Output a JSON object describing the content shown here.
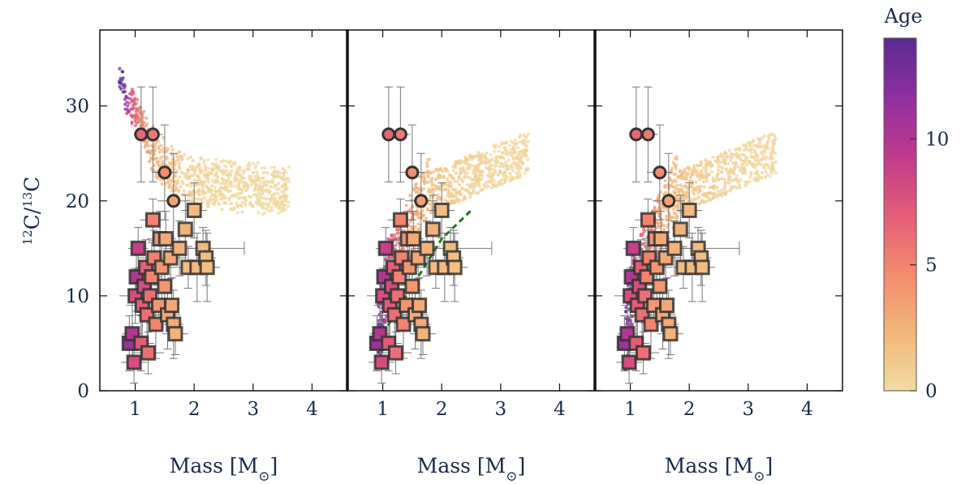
{
  "chart_data": {
    "type": "scatter",
    "panels": 3,
    "x_axis": {
      "label": "Mass [M",
      "label_suffix": "]",
      "label_symbol": "⊙",
      "range": [
        0.4,
        4.6
      ],
      "ticks": [
        "1",
        "2",
        "3",
        "4"
      ]
    },
    "y_axis": {
      "label_parts": [
        "12",
        "C/",
        "13",
        "C"
      ],
      "range": [
        0,
        38
      ],
      "ticks": [
        "0",
        "10",
        "20",
        "30"
      ]
    },
    "colorbar": {
      "title": "Age",
      "range": [
        0,
        14
      ],
      "ticks": [
        "0",
        "5",
        "10"
      ],
      "colormap": [
        "#f0dca2",
        "#f2b67a",
        "#f48a6e",
        "#e45c78",
        "#c03a8c",
        "#8e2fa0",
        "#5b2a91"
      ]
    },
    "observed_circles": [
      {
        "mass": 1.1,
        "ratio": 27,
        "age": 6.5
      },
      {
        "mass": 1.3,
        "ratio": 27,
        "age": 5.5
      },
      {
        "mass": 1.5,
        "ratio": 23,
        "age": 4.5
      },
      {
        "mass": 1.65,
        "ratio": 20,
        "age": 3.5
      }
    ],
    "observed_squares": [
      {
        "mass": 0.9,
        "ratio": 5,
        "age": 11
      },
      {
        "mass": 0.95,
        "ratio": 6,
        "age": 10
      },
      {
        "mass": 0.98,
        "ratio": 3,
        "age": 8
      },
      {
        "mass": 1.0,
        "ratio": 10,
        "age": 8
      },
      {
        "mass": 1.02,
        "ratio": 12,
        "age": 10
      },
      {
        "mass": 1.05,
        "ratio": 15,
        "age": 9
      },
      {
        "mass": 1.1,
        "ratio": 5,
        "age": 7
      },
      {
        "mass": 1.12,
        "ratio": 9,
        "age": 7
      },
      {
        "mass": 1.15,
        "ratio": 11,
        "age": 8
      },
      {
        "mass": 1.18,
        "ratio": 13,
        "age": 7
      },
      {
        "mass": 1.2,
        "ratio": 8,
        "age": 6
      },
      {
        "mass": 1.22,
        "ratio": 4,
        "age": 6
      },
      {
        "mass": 1.25,
        "ratio": 10,
        "age": 6
      },
      {
        "mass": 1.28,
        "ratio": 12,
        "age": 5
      },
      {
        "mass": 1.3,
        "ratio": 18,
        "age": 5
      },
      {
        "mass": 1.32,
        "ratio": 14,
        "age": 5
      },
      {
        "mass": 1.35,
        "ratio": 7,
        "age": 5
      },
      {
        "mass": 1.4,
        "ratio": 9,
        "age": 4
      },
      {
        "mass": 1.42,
        "ratio": 16,
        "age": 4
      },
      {
        "mass": 1.45,
        "ratio": 13,
        "age": 4
      },
      {
        "mass": 1.5,
        "ratio": 11,
        "age": 4
      },
      {
        "mass": 1.52,
        "ratio": 16,
        "age": 3
      },
      {
        "mass": 1.55,
        "ratio": 8,
        "age": 3
      },
      {
        "mass": 1.6,
        "ratio": 14,
        "age": 3
      },
      {
        "mass": 1.62,
        "ratio": 9,
        "age": 3
      },
      {
        "mass": 1.65,
        "ratio": 7,
        "age": 3
      },
      {
        "mass": 1.68,
        "ratio": 6,
        "age": 2.5
      },
      {
        "mass": 1.75,
        "ratio": 15,
        "age": 2.5
      },
      {
        "mass": 1.85,
        "ratio": 17,
        "age": 2.5
      },
      {
        "mass": 1.9,
        "ratio": 13,
        "age": 2
      },
      {
        "mass": 2.0,
        "ratio": 19,
        "age": 2
      },
      {
        "mass": 2.05,
        "ratio": 13,
        "age": 2
      },
      {
        "mass": 2.15,
        "ratio": 15,
        "age": 2
      },
      {
        "mass": 2.2,
        "ratio": 14,
        "age": 1.8
      },
      {
        "mass": 2.22,
        "ratio": 13,
        "age": 1.8
      }
    ],
    "model_panels": [
      {
        "name": "panel-1",
        "band": "upper"
      },
      {
        "name": "panel-2",
        "band": "lower",
        "trend_line": [
          [
            1.0,
            6
          ],
          [
            1.5,
            11
          ],
          [
            2.0,
            16
          ],
          [
            2.5,
            19
          ]
        ]
      },
      {
        "name": "panel-3",
        "band": "lower"
      }
    ]
  }
}
